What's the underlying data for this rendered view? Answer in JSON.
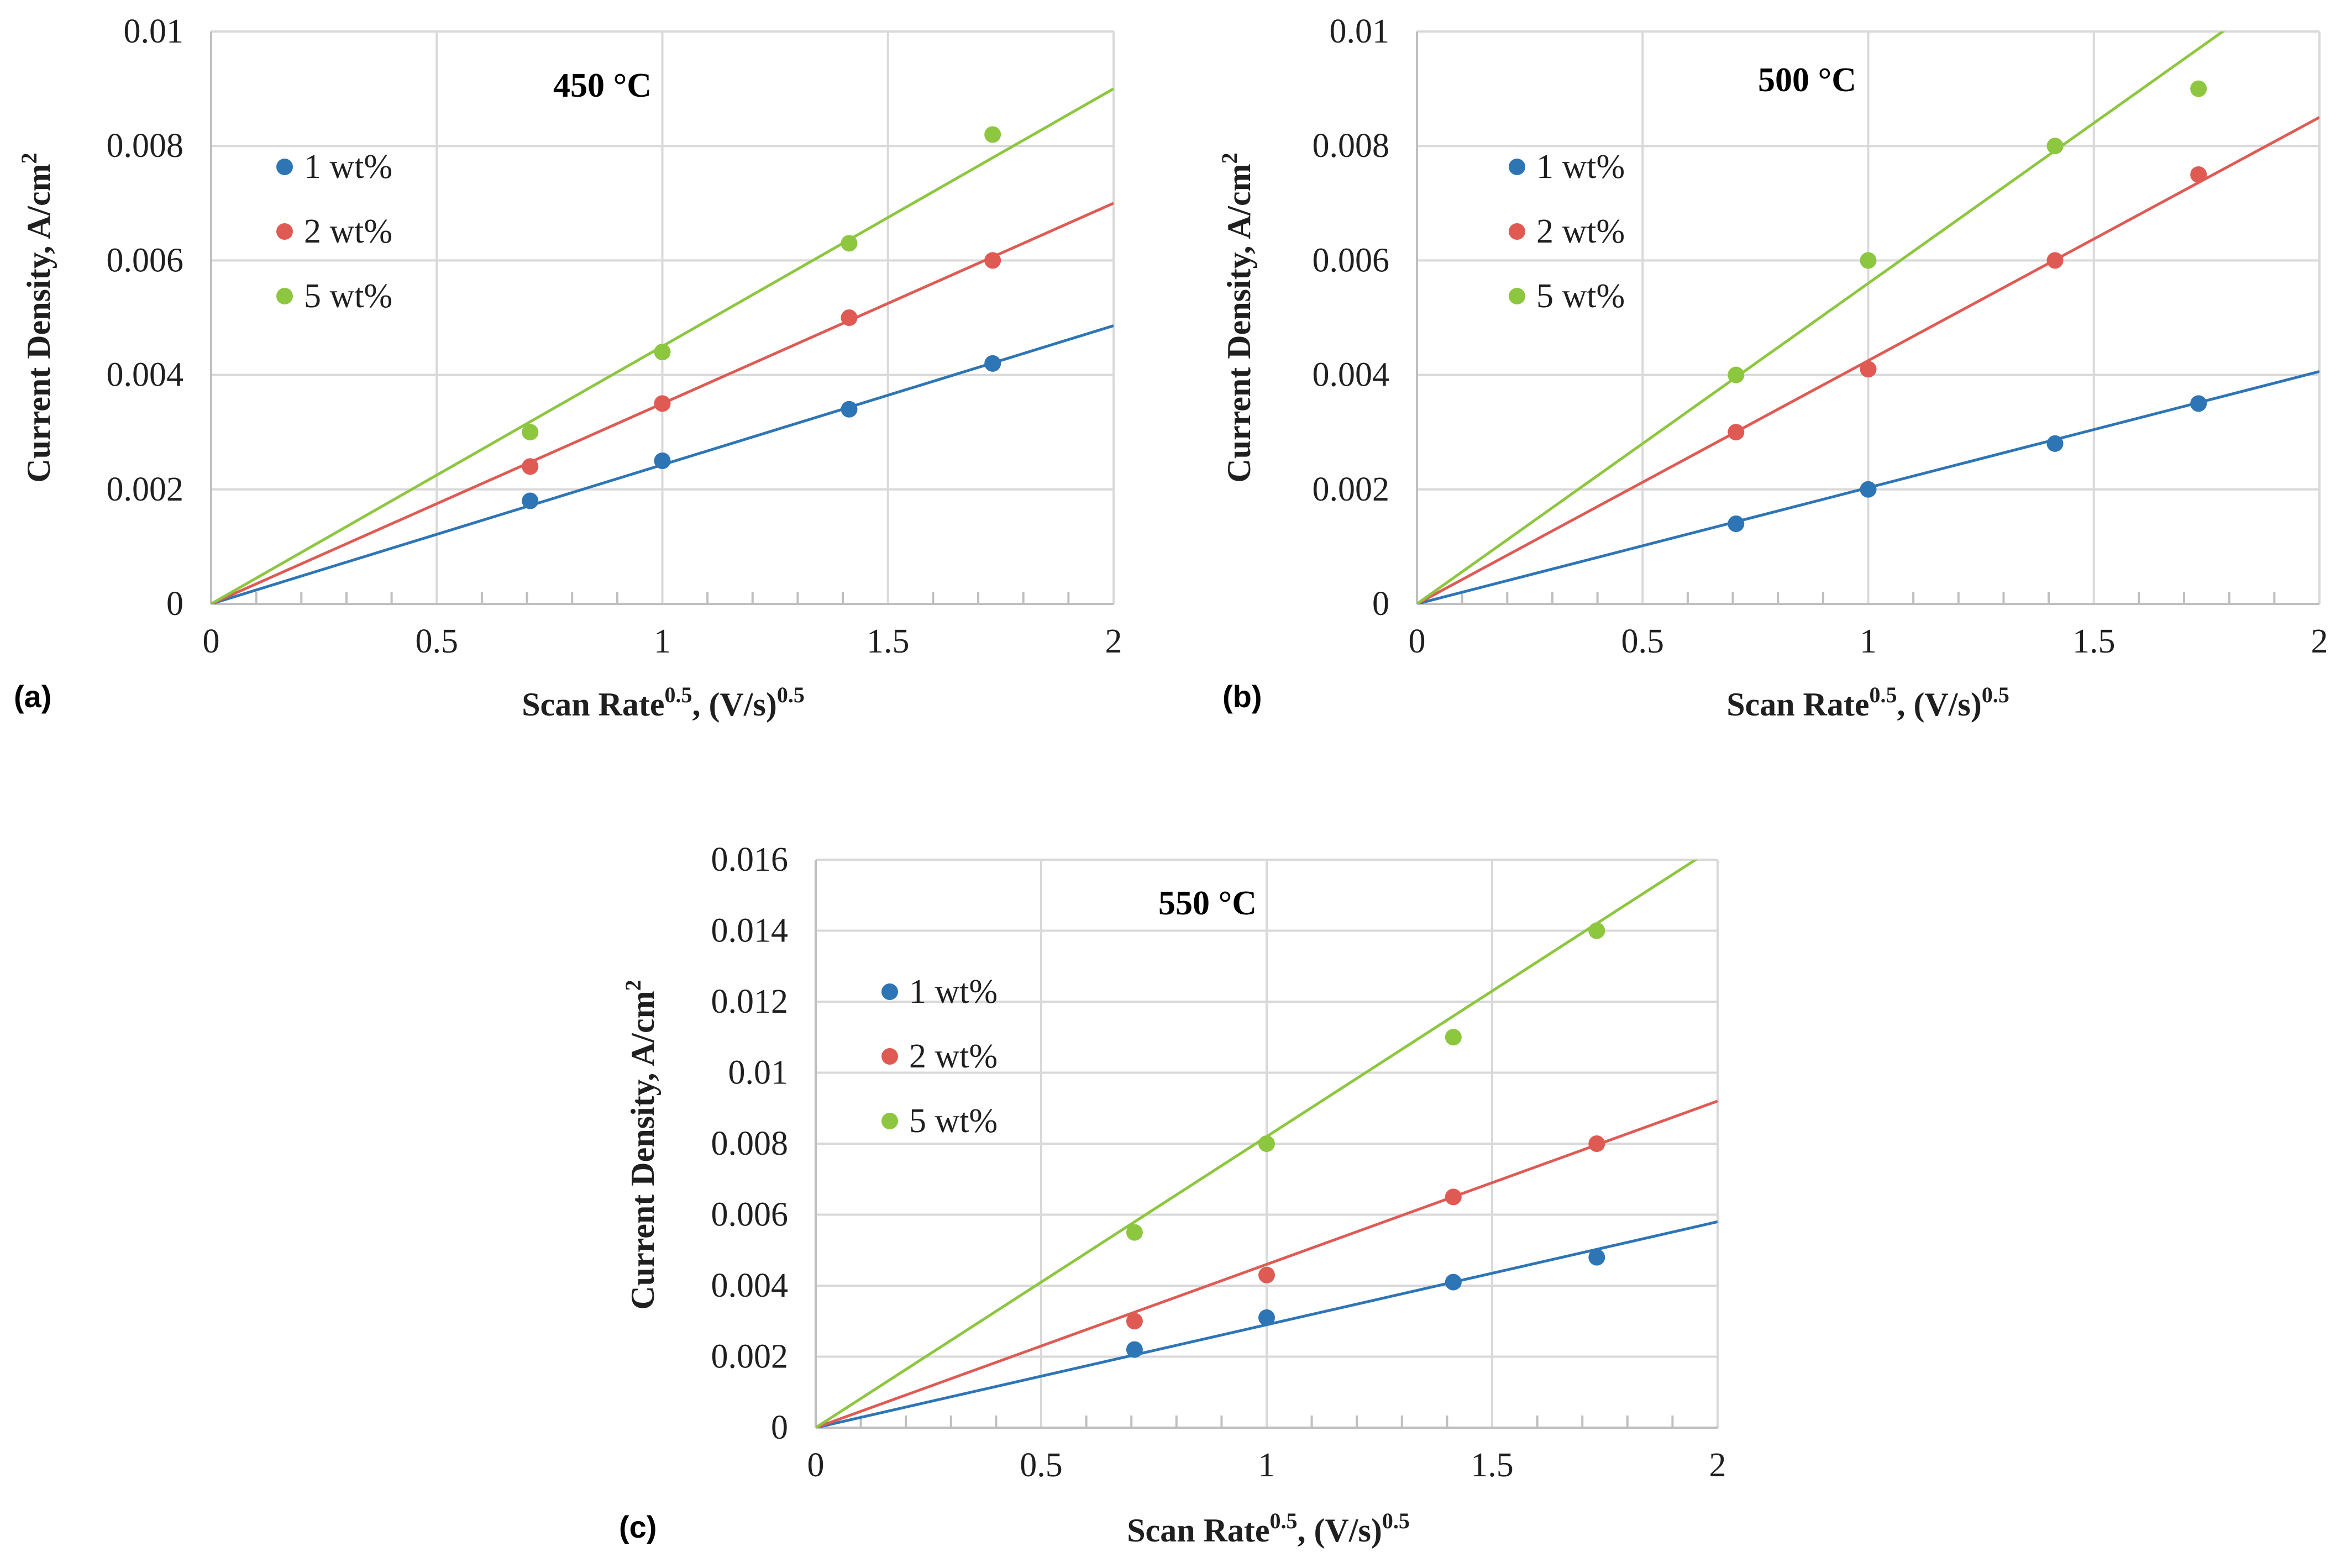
{
  "chart_data": [
    {
      "type": "scatter",
      "panel_label": "(a)",
      "title": "450 °C",
      "xlabel": {
        "main": "Scan Rate",
        "sup": "0.5",
        "tail": ", (V/s)",
        "tail_sup": "0.5"
      },
      "ylabel": {
        "main": "Current Density, A/cm",
        "sup": "2"
      },
      "xlim": [
        0,
        2
      ],
      "ylim": [
        0,
        0.01
      ],
      "x_ticks": [
        "0",
        "0.5",
        "1",
        "1.5",
        "2"
      ],
      "y_ticks": [
        "0",
        "0.002",
        "0.004",
        "0.006",
        "0.008",
        "0.01"
      ],
      "grid": true,
      "legend_position": "top-left",
      "series": [
        {
          "name": "1 wt%",
          "color": "#2e75b6",
          "x": [
            0.707,
            1.0,
            1.414,
            1.732
          ],
          "y": [
            0.0018,
            0.0025,
            0.0034,
            0.0042
          ],
          "trend_slope": 0.00243
        },
        {
          "name": "2 wt%",
          "color": "#e05a54",
          "x": [
            0.707,
            1.0,
            1.414,
            1.732
          ],
          "y": [
            0.0024,
            0.0035,
            0.005,
            0.006
          ],
          "trend_slope": 0.0035
        },
        {
          "name": "5 wt%",
          "color": "#8dc63f",
          "x": [
            0.707,
            1.0,
            1.414,
            1.732
          ],
          "y": [
            0.003,
            0.0044,
            0.0063,
            0.0082
          ],
          "trend_slope": 0.0045
        }
      ]
    },
    {
      "type": "scatter",
      "panel_label": "(b)",
      "title": "500 °C",
      "xlabel": {
        "main": "Scan Rate",
        "sup": "0.5",
        "tail": ", (V/s)",
        "tail_sup": "0.5"
      },
      "ylabel": {
        "main": "Current Density, A/cm",
        "sup": "2"
      },
      "xlim": [
        0,
        2
      ],
      "ylim": [
        0,
        0.01
      ],
      "x_ticks": [
        "0",
        "0.5",
        "1",
        "1.5",
        "2"
      ],
      "y_ticks": [
        "0",
        "0.002",
        "0.004",
        "0.006",
        "0.008",
        "0.01"
      ],
      "grid": true,
      "legend_position": "top-left",
      "series": [
        {
          "name": "1 wt%",
          "color": "#2e75b6",
          "x": [
            0.707,
            1.0,
            1.414,
            1.732
          ],
          "y": [
            0.0014,
            0.002,
            0.0028,
            0.0035
          ],
          "trend_slope": 0.00203
        },
        {
          "name": "2 wt%",
          "color": "#e05a54",
          "x": [
            0.707,
            1.0,
            1.414,
            1.732
          ],
          "y": [
            0.003,
            0.0041,
            0.006,
            0.0075
          ],
          "trend_slope": 0.00425
        },
        {
          "name": "5 wt%",
          "color": "#8dc63f",
          "x": [
            0.707,
            1.0,
            1.414,
            1.732
          ],
          "y": [
            0.004,
            0.006,
            0.008,
            0.009
          ],
          "trend_slope": 0.0056
        }
      ]
    },
    {
      "type": "scatter",
      "panel_label": "(c)",
      "title": "550 °C",
      "xlabel": {
        "main": "Scan Rate",
        "sup": "0.5",
        "tail": ", (V/s)",
        "tail_sup": "0.5"
      },
      "ylabel": {
        "main": "Current Density, A/cm",
        "sup": "2"
      },
      "xlim": [
        0,
        2
      ],
      "ylim": [
        0,
        0.016
      ],
      "x_ticks": [
        "0",
        "0.5",
        "1",
        "1.5",
        "2"
      ],
      "y_ticks": [
        "0",
        "0.002",
        "0.004",
        "0.006",
        "0.008",
        "0.01",
        "0.012",
        "0.014",
        "0.016"
      ],
      "grid": true,
      "legend_position": "top-left",
      "series": [
        {
          "name": "1 wt%",
          "color": "#2e75b6",
          "x": [
            0.707,
            1.0,
            1.414,
            1.732
          ],
          "y": [
            0.0022,
            0.0031,
            0.0041,
            0.0048
          ],
          "trend_slope": 0.0029
        },
        {
          "name": "2 wt%",
          "color": "#e05a54",
          "x": [
            0.707,
            1.0,
            1.414,
            1.732
          ],
          "y": [
            0.003,
            0.0043,
            0.0065,
            0.008
          ],
          "trend_slope": 0.0046
        },
        {
          "name": "5 wt%",
          "color": "#8dc63f",
          "x": [
            0.707,
            1.0,
            1.414,
            1.732
          ],
          "y": [
            0.0055,
            0.008,
            0.011,
            0.014
          ],
          "trend_slope": 0.0082
        }
      ]
    }
  ]
}
